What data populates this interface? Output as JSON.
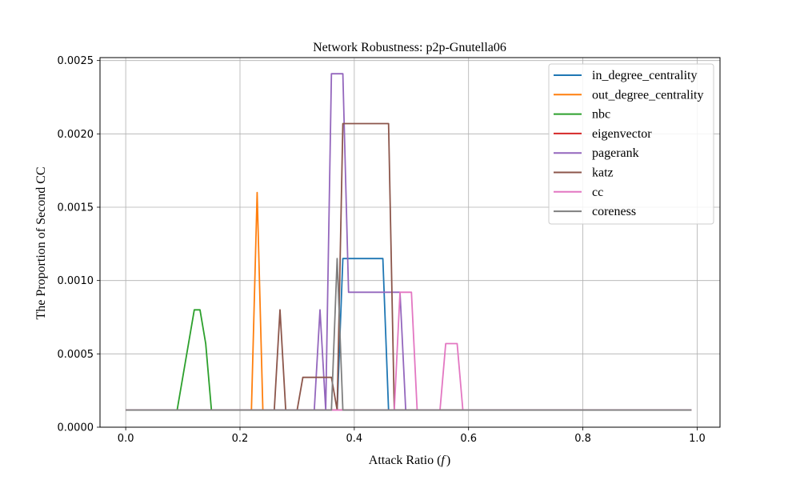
{
  "chart_data": {
    "type": "line",
    "title": "Network Robustness: p2p-Gnutella06",
    "xlabel": "Attack Ratio (",
    "xlabel_var": "f",
    "xlabel_close": ")",
    "ylabel": "The Proportion of Second CC",
    "xlim": [
      -0.045,
      1.04
    ],
    "ylim": [
      0,
      0.00252
    ],
    "xticks": [
      0.0,
      0.2,
      0.4,
      0.6,
      0.8,
      1.0
    ],
    "xtick_labels": [
      "0.0",
      "0.2",
      "0.4",
      "0.6",
      "0.8",
      "1.0"
    ],
    "yticks": [
      0,
      0.0005,
      0.001,
      0.0015,
      0.002,
      0.0025
    ],
    "ytick_labels": [
      "0.0000",
      "0.0005",
      "0.0010",
      "0.0015",
      "0.0020",
      "0.0025"
    ],
    "grid": true,
    "legend": "top-right",
    "series": [
      {
        "name": "in_degree_centrality",
        "color": "#1f77b4",
        "points": [
          [
            0,
            0.000117
          ],
          [
            0.37,
            0.000117
          ],
          [
            0.38,
            0.00115
          ],
          [
            0.45,
            0.00115
          ],
          [
            0.46,
            0.000117
          ],
          [
            0.99,
            0.000117
          ]
        ]
      },
      {
        "name": "out_degree_centrality",
        "color": "#ff7f0e",
        "points": [
          [
            0,
            0.000117
          ],
          [
            0.22,
            0.000117
          ],
          [
            0.23,
            0.0016
          ],
          [
            0.24,
            0.000117
          ],
          [
            0.99,
            0.000117
          ]
        ]
      },
      {
        "name": "nbc",
        "color": "#2ca02c",
        "points": [
          [
            0,
            0.000117
          ],
          [
            0.09,
            0.000117
          ],
          [
            0.12,
            0.0008
          ],
          [
            0.13,
            0.0008
          ],
          [
            0.14,
            0.00057
          ],
          [
            0.15,
            0.000117
          ],
          [
            0.99,
            0.000117
          ]
        ]
      },
      {
        "name": "eigenvector",
        "color": "#d62728",
        "points": [
          [
            0,
            0.000117
          ],
          [
            0.99,
            0.000117
          ]
        ]
      },
      {
        "name": "pagerank",
        "color": "#9467bd",
        "points": [
          [
            0,
            0.000117
          ],
          [
            0.33,
            0.000117
          ],
          [
            0.34,
            0.0008
          ],
          [
            0.35,
            0.000117
          ],
          [
            0.36,
            0.00241
          ],
          [
            0.38,
            0.00241
          ],
          [
            0.39,
            0.00092
          ],
          [
            0.47,
            0.00092
          ],
          [
            0.48,
            0.00092
          ],
          [
            0.49,
            0.000117
          ],
          [
            0.99,
            0.000117
          ]
        ]
      },
      {
        "name": "katz",
        "color": "#8c564b",
        "points": [
          [
            0,
            0.000117
          ],
          [
            0.26,
            0.000117
          ],
          [
            0.27,
            0.0008
          ],
          [
            0.28,
            0.000117
          ],
          [
            0.3,
            0.000117
          ],
          [
            0.31,
            0.00034
          ],
          [
            0.36,
            0.00034
          ],
          [
            0.37,
            0.000117
          ],
          [
            0.38,
            0.00207
          ],
          [
            0.46,
            0.00207
          ],
          [
            0.47,
            0.000117
          ],
          [
            0.99,
            0.000117
          ]
        ]
      },
      {
        "name": "cc",
        "color": "#e377c2",
        "points": [
          [
            0,
            0.000117
          ],
          [
            0.47,
            0.000117
          ],
          [
            0.48,
            0.00092
          ],
          [
            0.5,
            0.00092
          ],
          [
            0.51,
            0.000117
          ],
          [
            0.55,
            0.000117
          ],
          [
            0.56,
            0.00057
          ],
          [
            0.58,
            0.00057
          ],
          [
            0.59,
            0.000117
          ],
          [
            0.99,
            0.000117
          ]
        ]
      },
      {
        "name": "coreness",
        "color": "#7f7f7f",
        "points": [
          [
            0,
            0.000117
          ],
          [
            0.36,
            0.000117
          ],
          [
            0.37,
            0.00115
          ],
          [
            0.38,
            0.000117
          ],
          [
            0.99,
            0.000117
          ]
        ]
      }
    ]
  }
}
